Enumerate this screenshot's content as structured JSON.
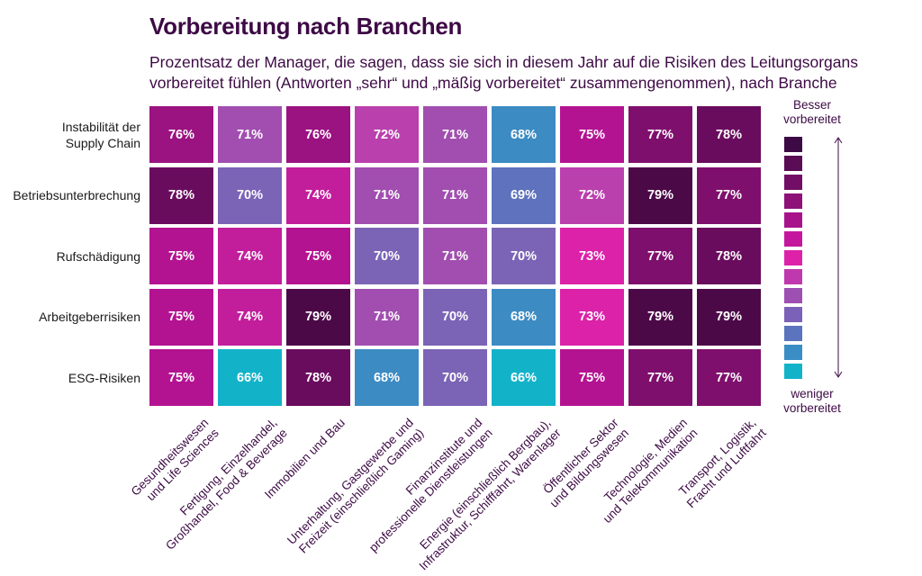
{
  "chart_data": {
    "type": "heatmap",
    "title": "Vorbereitung nach Branchen",
    "subtitle": "Prozentsatz der Manager, die sagen, dass sie sich in diesem Jahr auf die Risiken des Leitungsorgans vorbereitet fühlen (Antworten „sehr“ und „mäßig vorbereitet“ zusammengenommen), nach Branche",
    "rows": [
      [
        "Instabilität der",
        "Supply Chain"
      ],
      [
        "Betriebsunterbrechung"
      ],
      [
        "Rufschädigung"
      ],
      [
        "Arbeitgeberrisiken"
      ],
      [
        "ESG-Risiken"
      ]
    ],
    "columns": [
      [
        "Gesundheitswesen",
        "und Life Sciences"
      ],
      [
        "Fertigung, Einzelhandel,",
        "Großhandel, Food & Beverage"
      ],
      [
        "Immobilien und Bau"
      ],
      [
        "Unterhaltung, Gastgewerbe und",
        "Freizeit (einschließlich Gaming)"
      ],
      [
        "Finanzinstitute und",
        "professionelle Dienstleistungen"
      ],
      [
        "Energie (einschließlich Bergbau),",
        "Infrastruktur, Schifffahrt, Warenlager"
      ],
      [
        "Öffentlicher Sektor",
        "und Bildungswesen"
      ],
      [
        "Technologie, Medien",
        "und Telekommunikation"
      ],
      [
        "Transport, Logistik,",
        "Fracht und Luftfahrt"
      ]
    ],
    "values": [
      [
        76,
        71,
        76,
        72,
        71,
        68,
        75,
        77,
        78
      ],
      [
        78,
        70,
        74,
        71,
        71,
        69,
        72,
        79,
        77
      ],
      [
        75,
        74,
        75,
        70,
        71,
        70,
        73,
        77,
        78
      ],
      [
        75,
        74,
        79,
        71,
        70,
        68,
        73,
        79,
        79
      ],
      [
        75,
        66,
        78,
        68,
        70,
        66,
        75,
        77,
        77
      ]
    ],
    "value_suffix": "%",
    "color_scale": {
      "66": "#12b3c9",
      "68": "#3c8bc3",
      "69": "#5e72bd",
      "70": "#7b64b6",
      "71": "#a14eb0",
      "72": "#ba40ad",
      "73": "#db22a8",
      "74": "#c21e9c",
      "75": "#b31391",
      "76": "#9b1281",
      "77": "#7f0f6d",
      "78": "#6a0c5e",
      "79": "#4b0a47"
    },
    "legend": {
      "top_label": [
        "Besser",
        "vorbereitet"
      ],
      "bottom_label": [
        "weniger",
        "vorbereitet"
      ],
      "colors": [
        "#3d0a45",
        "#5a0c55",
        "#720e66",
        "#8d1179",
        "#a8138c",
        "#c5179d",
        "#dd22a9",
        "#c038ae",
        "#9e4fb2",
        "#7c61b8",
        "#5b74bd",
        "#3a8dc5",
        "#12b3c9"
      ]
    }
  }
}
